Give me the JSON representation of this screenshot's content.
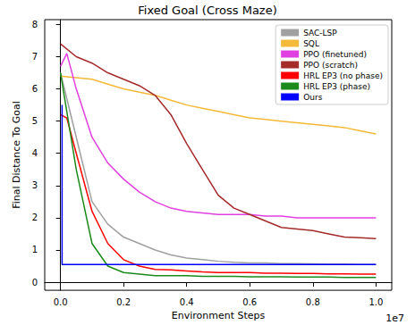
{
  "chart_data": {
    "type": "line",
    "title": "Fixed Goal (Cross Maze)",
    "x_label": "Environment Steps",
    "y_label": "Final Distance To Goal",
    "annotations": [
      {
        "text": "1e7"
      }
    ],
    "xlim": [
      -0.05,
      1.05
    ],
    "ylim": [
      -0.25,
      8.15
    ],
    "xticks": [
      {
        "value": 0,
        "label": "0.0"
      },
      {
        "value": 0.2,
        "label": "0.2"
      },
      {
        "value": 0.4,
        "label": "0.4"
      },
      {
        "value": 0.6,
        "label": "0.6"
      },
      {
        "value": 0.8,
        "label": "0.8"
      },
      {
        "value": 1,
        "label": "1.0"
      }
    ],
    "yticks": [
      0,
      1,
      2,
      3,
      4,
      5,
      6,
      7,
      8
    ],
    "grid": false,
    "legend": "upper right",
    "series": [
      {
        "name": "SAC-LSP",
        "color": "#a0a0a0",
        "x": [
          0,
          0.05,
          0.1,
          0.15,
          0.2,
          0.25,
          0.3,
          0.35,
          0.4,
          0.45,
          0.5,
          0.55,
          0.6,
          0.65,
          0.7,
          0.75,
          0.8,
          0.85,
          0.9,
          0.95,
          1.0
        ],
        "values": [
          6.5,
          4.5,
          2.5,
          1.8,
          1.4,
          1.2,
          1.0,
          0.85,
          0.75,
          0.7,
          0.65,
          0.62,
          0.6,
          0.6,
          0.58,
          0.58,
          0.57,
          0.56,
          0.56,
          0.55,
          0.55
        ]
      },
      {
        "name": "SQL",
        "color": "#f5b93a",
        "x": [
          0,
          0.05,
          0.1,
          0.15,
          0.2,
          0.25,
          0.3,
          0.35,
          0.4,
          0.45,
          0.5,
          0.55,
          0.6,
          0.65,
          0.7,
          0.75,
          0.8,
          0.85,
          0.9,
          0.95,
          1.0
        ],
        "values": [
          6.4,
          6.35,
          6.3,
          6.15,
          6.0,
          5.9,
          5.8,
          5.65,
          5.5,
          5.4,
          5.3,
          5.2,
          5.1,
          5.05,
          5.0,
          4.95,
          4.9,
          4.85,
          4.8,
          4.7,
          4.6
        ]
      },
      {
        "name": "PPO (finetuned)",
        "color": "#e040e0",
        "x": [
          0,
          0.02,
          0.05,
          0.1,
          0.15,
          0.2,
          0.25,
          0.3,
          0.35,
          0.4,
          0.45,
          0.5,
          0.55,
          0.6,
          0.65,
          0.7,
          0.75,
          0.8,
          0.85,
          0.9,
          0.95,
          1.0
        ],
        "values": [
          6.7,
          7.1,
          6.0,
          4.5,
          3.7,
          3.2,
          2.8,
          2.5,
          2.3,
          2.2,
          2.15,
          2.1,
          2.1,
          2.1,
          2.05,
          2.05,
          2.0,
          2.0,
          2.0,
          2.0,
          2.0,
          2.0
        ]
      },
      {
        "name": "PPO (scratch)",
        "color": "#a52a2a",
        "x": [
          0,
          0.05,
          0.1,
          0.15,
          0.2,
          0.25,
          0.3,
          0.35,
          0.4,
          0.45,
          0.5,
          0.55,
          0.6,
          0.65,
          0.7,
          0.75,
          0.8,
          0.85,
          0.9,
          0.95,
          1.0
        ],
        "values": [
          7.4,
          7.0,
          6.8,
          6.5,
          6.3,
          6.1,
          5.8,
          5.2,
          4.3,
          3.5,
          2.7,
          2.3,
          2.1,
          1.9,
          1.7,
          1.65,
          1.6,
          1.5,
          1.4,
          1.38,
          1.35
        ]
      },
      {
        "name": "HRL EP3 (no phase)",
        "color": "#ff0000",
        "x": [
          0,
          0.02,
          0.05,
          0.1,
          0.15,
          0.2,
          0.25,
          0.3,
          0.35,
          0.4,
          0.45,
          0.5,
          0.55,
          0.6,
          0.65,
          0.7,
          0.75,
          0.8,
          0.85,
          0.9,
          0.95,
          1.0
        ],
        "values": [
          5.2,
          5.1,
          4.0,
          2.2,
          1.2,
          0.7,
          0.5,
          0.4,
          0.38,
          0.35,
          0.32,
          0.3,
          0.3,
          0.3,
          0.28,
          0.28,
          0.27,
          0.27,
          0.26,
          0.26,
          0.25,
          0.25
        ]
      },
      {
        "name": "HRL EP3 (phase)",
        "color": "#1a8a1a",
        "x": [
          0,
          0.05,
          0.1,
          0.15,
          0.2,
          0.25,
          0.3,
          0.35,
          0.4,
          0.45,
          0.5,
          0.55,
          0.6,
          0.65,
          0.7,
          0.75,
          0.8,
          0.85,
          0.9,
          0.95,
          1.0
        ],
        "values": [
          6.5,
          3.5,
          1.2,
          0.5,
          0.3,
          0.25,
          0.2,
          0.2,
          0.2,
          0.18,
          0.18,
          0.18,
          0.17,
          0.17,
          0.17,
          0.16,
          0.16,
          0.16,
          0.15,
          0.15,
          0.15
        ]
      },
      {
        "name": "Ours",
        "color": "#0000ff",
        "x": [
          0.005,
          0.005,
          1.0
        ],
        "values": [
          5.5,
          0.55,
          0.55
        ]
      }
    ]
  }
}
